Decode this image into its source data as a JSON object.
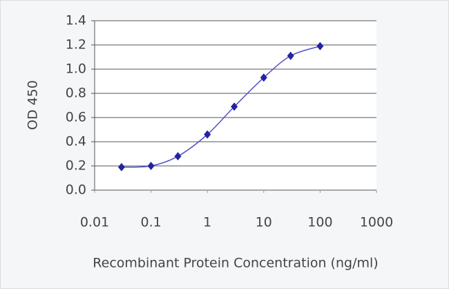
{
  "chart_data": {
    "type": "line",
    "x": [
      0.03,
      0.1,
      0.3,
      1,
      3,
      10,
      30,
      100
    ],
    "values": [
      0.19,
      0.2,
      0.28,
      0.46,
      0.69,
      0.93,
      1.11,
      1.19
    ],
    "color": "#2323a0",
    "line_color": "#5050c8",
    "xlim": [
      0.01,
      1000
    ],
    "xticks": [
      0.01,
      0.1,
      1,
      10,
      100,
      1000
    ],
    "log_x": true,
    "ylim": [
      0,
      1.4
    ],
    "yticks": [
      {
        "value": 0,
        "label": "0.0"
      },
      0.2,
      0.4,
      0.6,
      0.8,
      {
        "value": 1,
        "label": "1.0"
      },
      1.2,
      1.4
    ],
    "grid": true,
    "xlabel": "Recombinant Protein Concentration (ng/ml)",
    "ylabel": "OD 450"
  }
}
